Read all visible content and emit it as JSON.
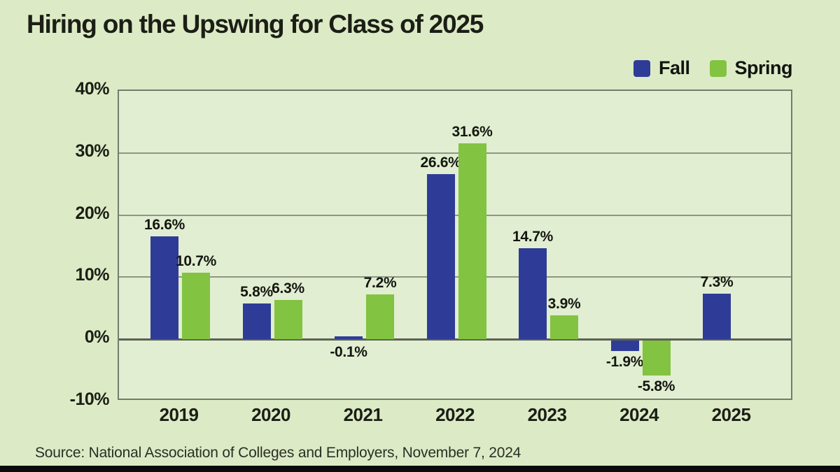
{
  "page_title": "Hiring on the Upswing for Class of 2025",
  "source_note": "Source: National Association of Colleges and Employers, November 7, 2024",
  "colors": {
    "background": "#dcebc6",
    "plot_background": "#e1eed2",
    "fall": "#2e3c98",
    "spring": "#82c341",
    "grid": "#8f9583",
    "zero_line": "#5c6154",
    "axis_border": "#757b6c",
    "text": "#1c1e16",
    "bottom_bar": "#0b0b0b"
  },
  "legend": {
    "items": [
      {
        "label": "Fall",
        "color": "#2e3c98"
      },
      {
        "label": "Spring",
        "color": "#82c341"
      }
    ]
  },
  "chart_data": {
    "type": "bar",
    "title": "Hiring on the Upswing for Class of 2025",
    "categories": [
      "2019",
      "2020",
      "2021",
      "2022",
      "2023",
      "2024",
      "2025"
    ],
    "series": [
      {
        "name": "Fall",
        "color": "#2e3c98",
        "values": [
          16.6,
          5.8,
          -0.1,
          26.6,
          14.7,
          -1.9,
          7.3
        ],
        "labels": [
          "16.6%",
          "5.8%",
          "-0.1%",
          "26.6%",
          "14.7%",
          "-1.9%",
          "7.3%"
        ]
      },
      {
        "name": "Spring",
        "color": "#82c341",
        "values": [
          10.7,
          6.3,
          7.2,
          31.6,
          3.9,
          -5.8,
          null
        ],
        "labels": [
          "10.7%",
          "6.3%",
          "7.2%",
          "31.6%",
          "3.9%",
          "-5.8%",
          null
        ]
      }
    ],
    "xlabel": "",
    "ylabel": "",
    "ylim": [
      -10,
      40
    ],
    "ytick_values": [
      40,
      30,
      20,
      10,
      0,
      -10
    ],
    "ytick_labels": [
      "40%",
      "30%",
      "20%",
      "10%",
      "0%",
      "-10%"
    ],
    "grid": true,
    "legend_position": "top-right"
  }
}
